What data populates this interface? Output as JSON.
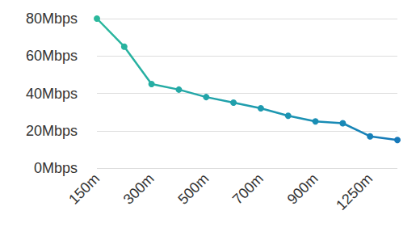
{
  "chart_data": {
    "type": "line",
    "categories": [
      "150m",
      null,
      "300m",
      null,
      "500m",
      null,
      "700m",
      null,
      "900m",
      null,
      "1250m",
      null
    ],
    "values": [
      80,
      65,
      45,
      42,
      38,
      35,
      32,
      28,
      25,
      24,
      17,
      15
    ],
    "colors": [
      "#2bb89c",
      "#28b39f",
      "#26aea3",
      "#24a9a6",
      "#22a4a9",
      "#20a0ac",
      "#1e9aaf",
      "#1c94b2",
      "#1a8eb4",
      "#1888b6",
      "#1780b8",
      "#1679b9"
    ],
    "ylim": [
      0,
      80
    ],
    "yticks": [
      {
        "value": 0,
        "label": "0Mbps"
      },
      {
        "value": 20,
        "label": "20Mbps"
      },
      {
        "value": 40,
        "label": "40Mbps"
      },
      {
        "value": 60,
        "label": "60Mbps"
      },
      {
        "value": 80,
        "label": "80Mbps"
      }
    ],
    "grid": true,
    "marker": "circle"
  }
}
